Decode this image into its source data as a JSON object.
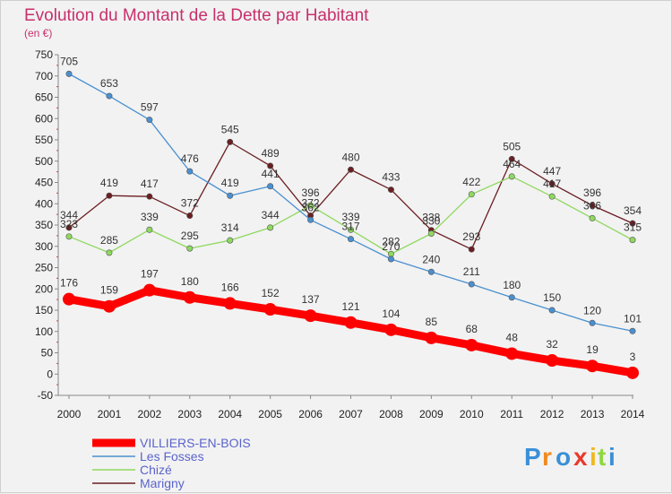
{
  "chart_data": {
    "type": "line",
    "title": "Evolution du Montant de la Dette par Habitant",
    "subtitle": "(en €)",
    "xlabel": "",
    "ylabel": "",
    "ylim": [
      -50,
      750
    ],
    "yticks": [
      -50,
      0,
      50,
      100,
      150,
      200,
      250,
      300,
      350,
      400,
      450,
      500,
      550,
      600,
      650,
      700,
      750
    ],
    "categories": [
      "2000",
      "2001",
      "2002",
      "2003",
      "2004",
      "2005",
      "2006",
      "2007",
      "2008",
      "2009",
      "2010",
      "2011",
      "2012",
      "2013",
      "2014"
    ],
    "grid": false,
    "legend_position": "bottom-left",
    "series": [
      {
        "name": "VILLIERS-EN-BOIS",
        "color": "#ff0000",
        "values": [
          176,
          159,
          197,
          180,
          166,
          152,
          137,
          121,
          104,
          85,
          68,
          48,
          32,
          19,
          3
        ]
      },
      {
        "name": "Les Fosses",
        "color": "#4a90d0",
        "values": [
          705,
          653,
          597,
          476,
          419,
          441,
          362,
          317,
          270,
          240,
          211,
          180,
          150,
          120,
          101
        ]
      },
      {
        "name": "Chizé",
        "color": "#8fd860",
        "values": [
          323,
          285,
          339,
          295,
          314,
          344,
          396,
          339,
          282,
          330,
          422,
          464,
          417,
          366,
          315
        ]
      },
      {
        "name": "Marigny",
        "color": "#6b1e22",
        "values": [
          344,
          419,
          417,
          372,
          545,
          489,
          372,
          480,
          433,
          338,
          293,
          505,
          447,
          396,
          354
        ]
      }
    ]
  },
  "logo": {
    "letters": [
      "P",
      "r",
      "o",
      "x",
      "i",
      "t",
      "i"
    ]
  }
}
